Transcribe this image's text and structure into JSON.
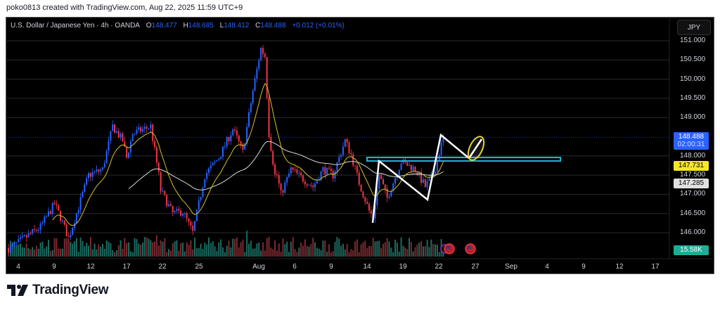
{
  "credit": "poko0813 created with TradingView.com, Aug 22, 2025 11:59 UTC+9",
  "legend": {
    "symbol": "U.S. Dollar / Japanese Yen · 4h · OANDA",
    "o_label": "O",
    "o": "148.477",
    "h_label": "H",
    "h": "148.685",
    "l_label": "L",
    "l": "148.412",
    "c_label": "C",
    "c": "148.488",
    "change": "+0.012 (+0.01%)"
  },
  "currency_button": "JPY",
  "price_axis": [
    "151.000",
    "150.500",
    "150.000",
    "149.500",
    "149.000",
    "148.000",
    "147.500",
    "147.000",
    "146.500",
    "146.000"
  ],
  "tags": {
    "last_price": "148.488",
    "countdown": "02:00:31",
    "ma_fast": "147.731",
    "ma_slow": "147.285",
    "volume": "15.58K"
  },
  "time_axis": [
    "4",
    "9",
    "12",
    "17",
    "22",
    "25",
    "Aug",
    "6",
    "9",
    "14",
    "19",
    "22",
    "27",
    "Sep",
    "4",
    "9",
    "12",
    "17"
  ],
  "footer": {
    "brand": "TradingView"
  },
  "colors": {
    "up": "#2962ff",
    "down": "#f23645",
    "ma_fast": "#d4c12a",
    "ma_slow": "#d8d8d8",
    "zone": "#19b6d6",
    "tag_blue": "#2962ff",
    "tag_yellow": "#f5e52a",
    "vol_tag": "#22ab94"
  },
  "chart_data": {
    "type": "candlestick",
    "symbol": "USDJPY",
    "interval": "4h",
    "ylim": [
      145.4,
      151.5
    ],
    "price_path_keypoints": [
      [
        0,
        145.6
      ],
      [
        1,
        145.6
      ],
      [
        16,
        146.15
      ],
      [
        23,
        146.75
      ],
      [
        26,
        146.4
      ],
      [
        30,
        145.85
      ],
      [
        40,
        147.5
      ],
      [
        47,
        147.65
      ],
      [
        52,
        148.77
      ],
      [
        57,
        148.4
      ],
      [
        59,
        147.95
      ],
      [
        62,
        148.58
      ],
      [
        71,
        148.77
      ],
      [
        75,
        147.5
      ],
      [
        76,
        147.1
      ],
      [
        82,
        146.5
      ],
      [
        87,
        146.55
      ],
      [
        92,
        146.0
      ],
      [
        98,
        147.5
      ],
      [
        105,
        147.95
      ],
      [
        112,
        148.7
      ],
      [
        117,
        148.1
      ],
      [
        122,
        149.7
      ],
      [
        126,
        150.8
      ],
      [
        128,
        150.6
      ],
      [
        130,
        148.58
      ],
      [
        133,
        147.5
      ],
      [
        134,
        147.5
      ],
      [
        136,
        147.0
      ],
      [
        141,
        147.65
      ],
      [
        147,
        147.4
      ],
      [
        152,
        147.2
      ],
      [
        157,
        147.65
      ],
      [
        162,
        147.5
      ],
      [
        168,
        148.4
      ],
      [
        171,
        148.03
      ],
      [
        175,
        147.3
      ],
      [
        180,
        146.57
      ],
      [
        182,
        146.4
      ],
      [
        185,
        147.5
      ],
      [
        189,
        146.9
      ],
      [
        196,
        147.85
      ],
      [
        203,
        147.65
      ],
      [
        208,
        147.2
      ],
      [
        212,
        147.5
      ],
      [
        217,
        148.488
      ]
    ],
    "resistance_level": 147.92,
    "last_close": 148.488,
    "ma_fast_last": 147.731,
    "ma_slow_last": 147.285
  }
}
